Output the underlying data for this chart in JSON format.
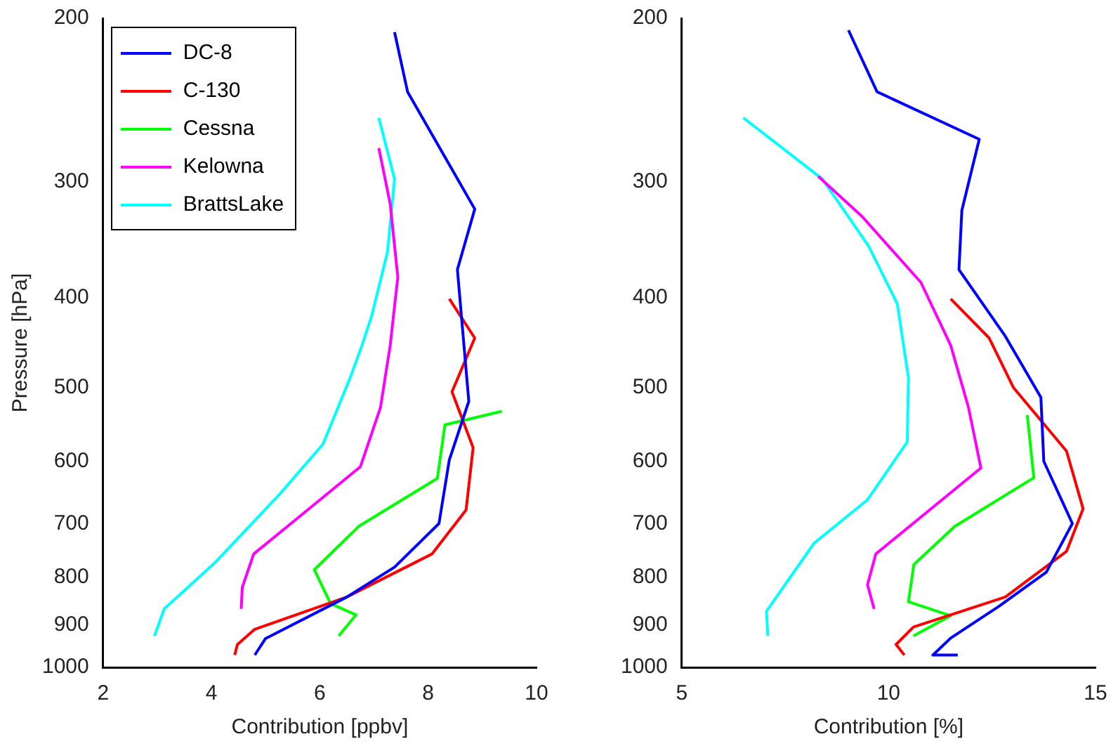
{
  "chart_data": [
    {
      "type": "line",
      "xlabel": "Contribution [ppbv]",
      "ylabel": "Pressure [hPa]",
      "log": "y",
      "legend": "top left",
      "xlim": [
        2,
        10
      ],
      "xticks": [
        2,
        4,
        6,
        8,
        10
      ],
      "ylim": [
        1000,
        200
      ],
      "yticks": [
        200,
        300,
        400,
        500,
        600,
        700,
        800,
        900,
        1000
      ],
      "series": [
        {
          "name": "DC-8",
          "color": "#0000ff",
          "x": [
            7.38,
            7.62,
            8.86,
            8.54,
            8.75,
            8.39,
            8.2,
            7.38,
            6.5,
            5.0,
            4.8
          ],
          "values": [
            207,
            240,
            321,
            373,
            517,
            598,
            700,
            780,
            840,
            931,
            970
          ]
        },
        {
          "name": "C-130",
          "color": "#ff0000",
          "x": [
            8.39,
            8.86,
            8.44,
            8.83,
            8.7,
            8.07,
            6.5,
            4.8,
            4.48,
            4.43
          ],
          "values": [
            401,
            442,
            505,
            580,
            677,
            755,
            840,
            910,
            945,
            970
          ]
        },
        {
          "name": "Cessna",
          "color": "#00ff00",
          "x": [
            9.36,
            8.31,
            8.17,
            6.72,
            5.9,
            6.2,
            6.67,
            6.35
          ],
          "values": [
            530,
            548,
            626,
            705,
            785,
            854,
            878,
            925
          ]
        },
        {
          "name": "Kelowna",
          "color": "#ff00ff",
          "x": [
            7.09,
            7.3,
            7.44,
            7.3,
            7.12,
            6.75,
            5.6,
            4.78,
            4.57,
            4.55
          ],
          "values": [
            276,
            317,
            380,
            450,
            525,
            608,
            690,
            755,
            820,
            865
          ]
        },
        {
          "name": "BrattsLake",
          "color": "#00ffff",
          "x": [
            7.09,
            7.38,
            7.25,
            6.96,
            6.78,
            6.56,
            6.06,
            5.27,
            4.08,
            3.13,
            2.95
          ],
          "values": [
            256,
            298,
            357,
            418,
            450,
            488,
            575,
            650,
            770,
            865,
            925
          ]
        }
      ]
    },
    {
      "type": "line",
      "xlabel": "Contribution [%]",
      "log": "y",
      "xlim": [
        5,
        15
      ],
      "xticks": [
        5,
        10,
        15
      ],
      "ylim": [
        1000,
        200
      ],
      "yticks": [
        200,
        300,
        400,
        500,
        600,
        700,
        800,
        900,
        1000
      ],
      "series": [
        {
          "color": "#0000ff",
          "x": [
            9.03,
            9.72,
            12.19,
            11.77,
            11.7,
            12.82,
            13.68,
            13.75,
            14.44,
            13.81,
            12.66,
            11.5,
            11.07,
            11.67
          ],
          "values": [
            206,
            240,
            270,
            322,
            373,
            440,
            512,
            600,
            700,
            790,
            860,
            930,
            970,
            970
          ]
        },
        {
          "color": "#ff0000",
          "x": [
            11.5,
            12.43,
            13.02,
            14.3,
            14.7,
            14.3,
            12.82,
            10.6,
            10.18,
            10.38
          ],
          "values": [
            401,
            442,
            500,
            585,
            675,
            750,
            840,
            905,
            945,
            970
          ]
        },
        {
          "color": "#00ff00",
          "x": [
            13.35,
            13.51,
            11.6,
            10.61,
            10.48,
            11.5,
            10.6
          ],
          "values": [
            535,
            625,
            705,
            775,
            850,
            880,
            925
          ]
        },
        {
          "color": "#ff00ff",
          "x": [
            8.3,
            9.36,
            10.78,
            11.5,
            11.93,
            12.23,
            9.69,
            9.49,
            9.65
          ],
          "values": [
            296,
            327,
            385,
            450,
            525,
            610,
            755,
            815,
            865
          ]
        },
        {
          "color": "#00ffff",
          "x": [
            6.49,
            8.4,
            9.52,
            10.21,
            10.48,
            10.45,
            9.49,
            8.2,
            7.05,
            7.08
          ],
          "values": [
            256,
            298,
            352,
            406,
            488,
            572,
            660,
            735,
            870,
            925
          ]
        }
      ]
    }
  ]
}
